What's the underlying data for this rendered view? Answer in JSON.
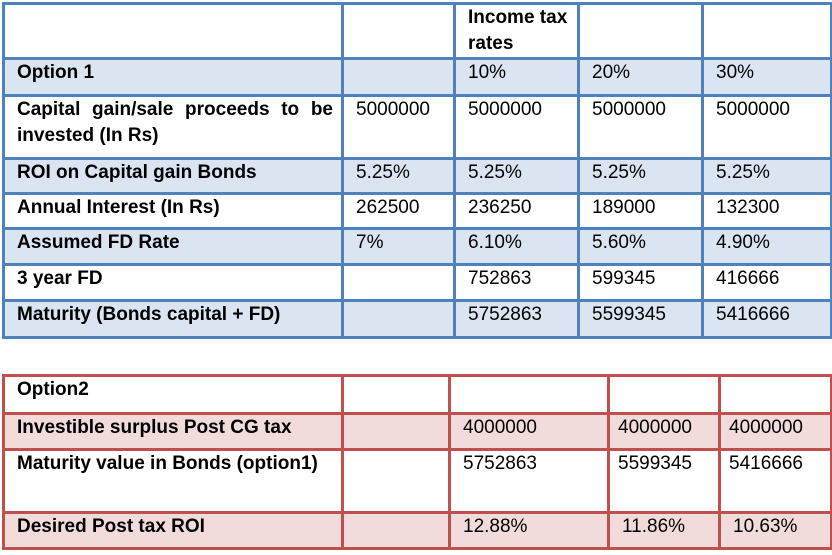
{
  "table1": {
    "header": [
      "",
      "",
      "Income tax rates",
      "",
      ""
    ],
    "rows": [
      [
        "Option 1",
        "",
        "10%",
        "20%",
        "30%"
      ],
      [
        "Capital gain/sale proceeds to be invested (In Rs)",
        "5000000",
        "5000000",
        "5000000",
        "5000000"
      ],
      [
        "ROI on Capital gain Bonds",
        "5.25%",
        "5.25%",
        "5.25%",
        "5.25%"
      ],
      [
        "Annual Interest (In Rs)",
        "262500",
        "236250",
        "189000",
        "132300"
      ],
      [
        "Assumed FD Rate",
        "7%",
        "6.10%",
        "5.60%",
        "4.90%"
      ],
      [
        "3 year FD",
        "",
        "752863",
        "599345",
        "416666"
      ],
      [
        "Maturity (Bonds capital + FD)",
        "",
        "5752863",
        "5599345",
        "5416666"
      ]
    ]
  },
  "table2": {
    "rows": [
      [
        "Option2",
        "",
        "",
        "",
        ""
      ],
      [
        "Investible surplus Post CG tax",
        "",
        "4000000",
        "4000000",
        "4000000"
      ],
      [
        "Maturity value in Bonds (option1)",
        "",
        "5752863",
        "5599345",
        "5416666"
      ],
      [
        "Desired Post tax ROI",
        "",
        "12.88%",
        "11.86%",
        "10.63%"
      ]
    ]
  }
}
